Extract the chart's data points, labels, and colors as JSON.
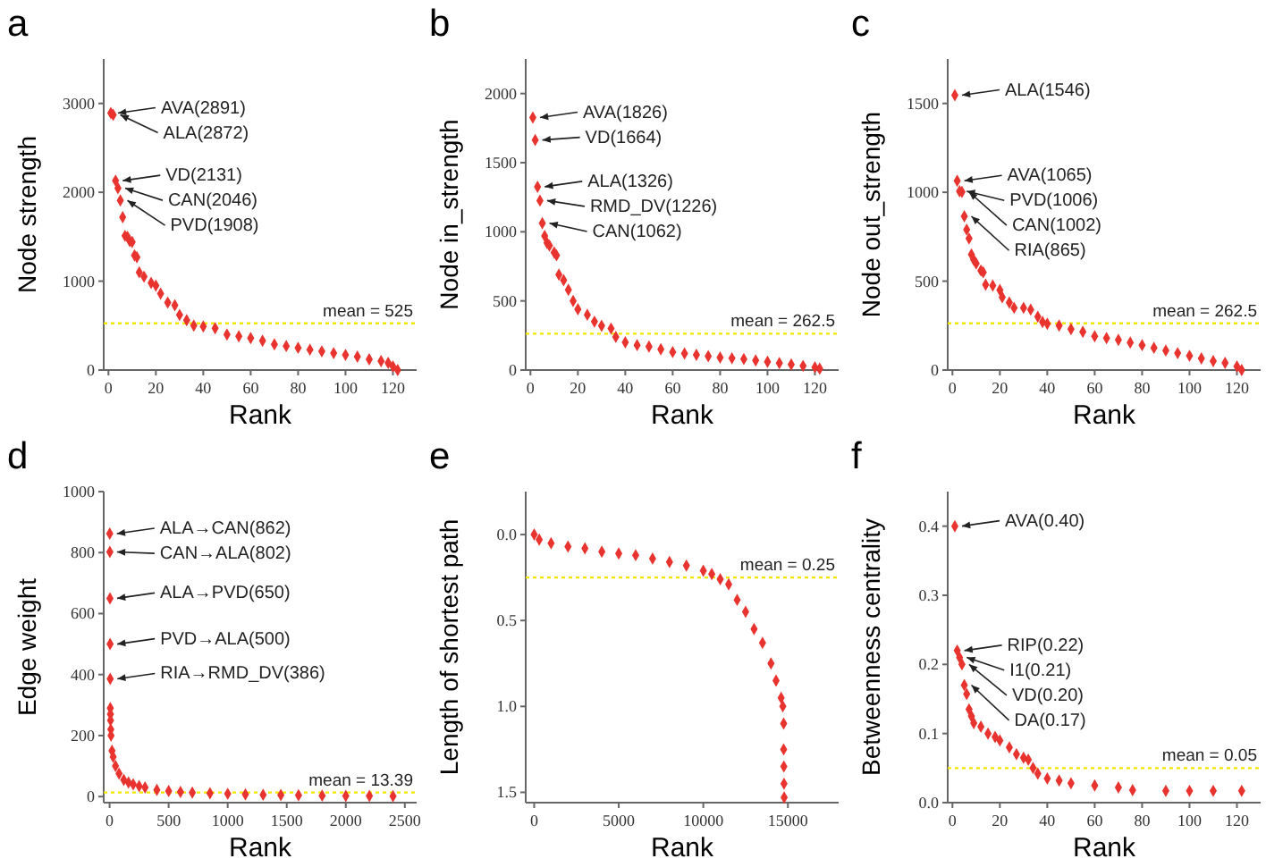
{
  "chart_data": [
    {
      "type": "scatter",
      "title": "a",
      "xlabel": "Rank",
      "ylabel": "Node strength",
      "color": "#e8332e",
      "marker": "diamond",
      "xlim": [
        -2,
        130
      ],
      "xticks": [
        0,
        20,
        40,
        60,
        80,
        100,
        120
      ],
      "ylim": [
        0,
        3500
      ],
      "yticks": [
        0,
        1000,
        2000,
        3000
      ],
      "x": [
        1,
        2,
        3,
        4,
        5,
        6,
        7,
        8,
        9,
        10,
        11,
        12,
        13,
        15,
        18,
        20,
        22,
        25,
        28,
        30,
        33,
        36,
        40,
        45,
        50,
        55,
        60,
        65,
        70,
        75,
        80,
        85,
        90,
        95,
        100,
        105,
        110,
        115,
        118,
        120,
        122
      ],
      "values": [
        2891,
        2872,
        2131,
        2046,
        1908,
        1720,
        1510,
        1500,
        1450,
        1440,
        1290,
        1270,
        1100,
        1050,
        980,
        950,
        860,
        760,
        730,
        620,
        560,
        500,
        490,
        470,
        400,
        380,
        360,
        330,
        290,
        270,
        250,
        230,
        210,
        190,
        170,
        150,
        120,
        100,
        80,
        40,
        0
      ],
      "annotations": [
        {
          "text": "AVA(2891)",
          "x": 1,
          "y": 2891
        },
        {
          "text": "ALA(2872)",
          "x": 2,
          "y": 2872
        },
        {
          "text": "VD(2131)",
          "x": 3,
          "y": 2131
        },
        {
          "text": "CAN(2046)",
          "x": 4,
          "y": 2046
        },
        {
          "text": "PVD(1908)",
          "x": 5,
          "y": 1908
        }
      ],
      "ref_lines": [
        {
          "axis": "y",
          "value": 525,
          "label": "mean = 525",
          "color": "#f2e600",
          "line_style": "dotted"
        }
      ]
    },
    {
      "type": "scatter",
      "title": "b",
      "xlabel": "Rank",
      "ylabel": "Node in_strength",
      "color": "#e8332e",
      "marker": "diamond",
      "xlim": [
        -2,
        130
      ],
      "xticks": [
        0,
        20,
        40,
        60,
        80,
        100,
        120
      ],
      "ylim": [
        0,
        2250
      ],
      "yticks": [
        0,
        500,
        1000,
        1500,
        2000
      ],
      "x": [
        1,
        2,
        3,
        4,
        5,
        6,
        7,
        8,
        10,
        11,
        12,
        14,
        16,
        18,
        20,
        24,
        27,
        30,
        34,
        36,
        40,
        45,
        50,
        55,
        60,
        65,
        70,
        75,
        80,
        85,
        90,
        95,
        100,
        105,
        110,
        115,
        120,
        122
      ],
      "values": [
        1826,
        1664,
        1326,
        1226,
        1062,
        970,
        920,
        900,
        850,
        830,
        690,
        650,
        580,
        500,
        440,
        400,
        350,
        320,
        300,
        240,
        200,
        180,
        170,
        150,
        130,
        120,
        110,
        100,
        90,
        85,
        80,
        70,
        60,
        50,
        40,
        30,
        20,
        10
      ],
      "annotations": [
        {
          "text": "AVA(1826)",
          "x": 1,
          "y": 1826
        },
        {
          "text": "VD(1664)",
          "x": 2,
          "y": 1664
        },
        {
          "text": "ALA(1326)",
          "x": 3,
          "y": 1326
        },
        {
          "text": "RMD_DV(1226)",
          "x": 4,
          "y": 1226
        },
        {
          "text": "CAN(1062)",
          "x": 5,
          "y": 1062
        }
      ],
      "ref_lines": [
        {
          "axis": "y",
          "value": 262.5,
          "label": "mean = 262.5",
          "color": "#f2e600",
          "line_style": "dotted"
        }
      ]
    },
    {
      "type": "scatter",
      "title": "c",
      "xlabel": "Rank",
      "ylabel": "Node out_strength",
      "color": "#e8332e",
      "marker": "diamond",
      "xlim": [
        -2,
        130
      ],
      "xticks": [
        0,
        20,
        40,
        60,
        80,
        100,
        120
      ],
      "ylim": [
        0,
        1750
      ],
      "yticks": [
        0,
        500,
        1000,
        1500
      ],
      "x": [
        1,
        2,
        3,
        4,
        5,
        6,
        7,
        8,
        9,
        10,
        12,
        13,
        14,
        17,
        20,
        21,
        24,
        26,
        30,
        33,
        36,
        38,
        40,
        45,
        50,
        55,
        60,
        65,
        70,
        75,
        80,
        85,
        90,
        95,
        100,
        105,
        110,
        115,
        120,
        122
      ],
      "values": [
        1546,
        1065,
        1006,
        1002,
        865,
        790,
        740,
        650,
        620,
        600,
        560,
        550,
        480,
        475,
        450,
        410,
        380,
        350,
        350,
        340,
        300,
        270,
        260,
        250,
        230,
        215,
        190,
        180,
        170,
        155,
        140,
        125,
        110,
        95,
        80,
        65,
        50,
        40,
        20,
        0
      ],
      "annotations": [
        {
          "text": "ALA(1546)",
          "x": 1,
          "y": 1546
        },
        {
          "text": "AVA(1065)",
          "x": 2,
          "y": 1065
        },
        {
          "text": "PVD(1006)",
          "x": 3,
          "y": 1006
        },
        {
          "text": "CAN(1002)",
          "x": 4,
          "y": 1002
        },
        {
          "text": "RIA(865)",
          "x": 5,
          "y": 865
        }
      ],
      "ref_lines": [
        {
          "axis": "y",
          "value": 262.5,
          "label": "mean = 262.5",
          "color": "#f2e600",
          "line_style": "dotted"
        }
      ]
    },
    {
      "type": "scatter",
      "title": "d",
      "xlabel": "Rank",
      "ylabel": "Edge weight",
      "color": "#e8332e",
      "marker": "diamond",
      "xlim": [
        -50,
        2600
      ],
      "xticks": [
        0,
        500,
        1000,
        1500,
        2000,
        2500
      ],
      "ylim": [
        -20,
        1000
      ],
      "yticks": [
        0,
        200,
        400,
        600,
        800,
        1000
      ],
      "x": [
        1,
        2,
        3,
        4,
        5,
        6,
        7,
        8,
        10,
        12,
        20,
        30,
        50,
        80,
        120,
        160,
        200,
        250,
        300,
        400,
        500,
        600,
        700,
        850,
        1000,
        1150,
        1300,
        1450,
        1600,
        1800,
        2000,
        2200,
        2400
      ],
      "values": [
        862,
        802,
        650,
        500,
        386,
        290,
        270,
        250,
        220,
        200,
        150,
        130,
        100,
        75,
        55,
        46,
        40,
        34,
        30,
        22,
        18,
        15,
        13,
        11,
        9,
        7,
        6,
        5,
        4,
        3,
        2,
        2,
        1
      ],
      "annotations": [
        {
          "text": "ALA→CAN(862)",
          "x": 1,
          "y": 862
        },
        {
          "text": "CAN→ALA(802)",
          "x": 2,
          "y": 802
        },
        {
          "text": "ALA→PVD(650)",
          "x": 3,
          "y": 650
        },
        {
          "text": "PVD→ALA(500)",
          "x": 4,
          "y": 500
        },
        {
          "text": "RIA→RMD_DV(386)",
          "x": 5,
          "y": 386
        }
      ],
      "ref_lines": [
        {
          "axis": "y",
          "value": 13.39,
          "label": "mean = 13.39",
          "color": "#f2e600",
          "line_style": "dotted"
        }
      ]
    },
    {
      "type": "scatter",
      "title": "e",
      "xlabel": "Rank",
      "ylabel": "Length of shortest path",
      "color": "#e8332e",
      "marker": "diamond",
      "xlim": [
        -500,
        18000
      ],
      "xticks": [
        0,
        5000,
        10000,
        15000
      ],
      "ylim": [
        1.56,
        -0.25
      ],
      "yticks": [
        {
          "value": 0,
          "label": "0.0"
        },
        {
          "value": 0.5,
          "label": "0.5"
        },
        {
          "value": 1,
          "label": "1.0"
        },
        {
          "value": 1.5,
          "label": "1.5"
        }
      ],
      "x": [
        0,
        300,
        1000,
        2000,
        3000,
        4000,
        5000,
        6000,
        7000,
        8000,
        9000,
        10000,
        10500,
        11000,
        11500,
        12000,
        12500,
        13000,
        13500,
        14000,
        14300,
        14600,
        14700,
        14750,
        14750,
        14760,
        14770,
        14780
      ],
      "values": [
        0,
        0.03,
        0.05,
        0.07,
        0.08,
        0.1,
        0.11,
        0.12,
        0.14,
        0.16,
        0.18,
        0.21,
        0.23,
        0.26,
        0.29,
        0.38,
        0.45,
        0.55,
        0.63,
        0.75,
        0.85,
        0.95,
        1.0,
        1.1,
        1.25,
        1.35,
        1.45,
        1.53
      ],
      "ref_lines": [
        {
          "axis": "y",
          "value": 0.25,
          "label": "mean = 0.25",
          "color": "#f2e600",
          "line_style": "dotted"
        }
      ]
    },
    {
      "type": "scatter",
      "title": "f",
      "xlabel": "Rank",
      "ylabel": "Betweenness centrality",
      "color": "#e8332e",
      "marker": "diamond",
      "xlim": [
        -2,
        130
      ],
      "xticks": [
        0,
        20,
        40,
        60,
        80,
        100,
        120
      ],
      "ylim": [
        0,
        0.45
      ],
      "yticks": [
        {
          "value": 0,
          "label": "0.0"
        },
        {
          "value": 0.1,
          "label": "0.1"
        },
        {
          "value": 0.2,
          "label": "0.2"
        },
        {
          "value": 0.3,
          "label": "0.3"
        },
        {
          "value": 0.4,
          "label": "0.4"
        }
      ],
      "x": [
        1,
        2,
        3,
        4,
        5,
        6,
        7,
        8,
        9,
        12,
        15,
        18,
        20,
        24,
        27,
        30,
        32,
        34,
        36,
        40,
        45,
        50,
        60,
        70,
        76,
        90,
        100,
        110,
        122
      ],
      "values": [
        0.4,
        0.22,
        0.21,
        0.2,
        0.17,
        0.157,
        0.135,
        0.125,
        0.115,
        0.11,
        0.1,
        0.095,
        0.09,
        0.08,
        0.07,
        0.065,
        0.062,
        0.05,
        0.042,
        0.035,
        0.032,
        0.028,
        0.025,
        0.022,
        0.018,
        0.017,
        0.017,
        0.017,
        0.017
      ],
      "annotations": [
        {
          "text": "AVA(0.40)",
          "x": 1,
          "y": 0.4
        },
        {
          "text": "RIP(0.22)",
          "x": 2,
          "y": 0.22
        },
        {
          "text": "I1(0.21)",
          "x": 3,
          "y": 0.21
        },
        {
          "text": "VD(0.20)",
          "x": 4,
          "y": 0.2
        },
        {
          "text": "DA(0.17)",
          "x": 5,
          "y": 0.17
        }
      ],
      "ref_lines": [
        {
          "axis": "y",
          "value": 0.05,
          "label": "mean = 0.05",
          "color": "#f2e600",
          "line_style": "dotted"
        }
      ]
    }
  ]
}
